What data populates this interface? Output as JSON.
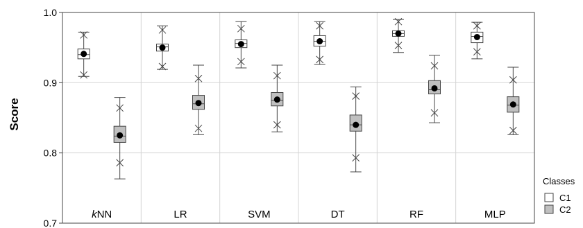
{
  "chart_data": {
    "type": "box",
    "ylabel": "Score",
    "ylim": [
      0.7,
      1.0
    ],
    "yticks": [
      0.7,
      0.8,
      0.9,
      1.0
    ],
    "ytick_labels": [
      "0.7",
      "0.8",
      "0.9",
      "1.0"
    ],
    "grid": true,
    "legend": {
      "title": "Classes",
      "placement": "right-bottom",
      "entries": [
        {
          "label": "C1",
          "color": "#ffffff"
        },
        {
          "label": "C2",
          "color": "#c0c0c0"
        }
      ]
    },
    "categories": [
      {
        "prefix": "k",
        "rest": "NN"
      },
      {
        "prefix": "",
        "rest": "LR"
      },
      {
        "prefix": "",
        "rest": "SVM"
      },
      {
        "prefix": "",
        "rest": "DT"
      },
      {
        "prefix": "",
        "rest": "RF"
      },
      {
        "prefix": "",
        "rest": "MLP"
      }
    ],
    "series": [
      {
        "name": "C1",
        "color": "#ffffff",
        "boxes": [
          {
            "min": 0.909,
            "p1": 0.911,
            "q1": 0.934,
            "median": 0.94,
            "mean": 0.941,
            "q3": 0.948,
            "p99": 0.968,
            "max": 0.972
          },
          {
            "min": 0.919,
            "p1": 0.923,
            "q1": 0.945,
            "median": 0.951,
            "mean": 0.95,
            "q3": 0.955,
            "p99": 0.975,
            "max": 0.981
          },
          {
            "min": 0.921,
            "p1": 0.93,
            "q1": 0.95,
            "median": 0.956,
            "mean": 0.955,
            "q3": 0.961,
            "p99": 0.977,
            "max": 0.987
          },
          {
            "min": 0.926,
            "p1": 0.933,
            "q1": 0.952,
            "median": 0.959,
            "mean": 0.959,
            "q3": 0.967,
            "p99": 0.981,
            "max": 0.987
          },
          {
            "min": 0.943,
            "p1": 0.953,
            "q1": 0.966,
            "median": 0.97,
            "mean": 0.97,
            "q3": 0.974,
            "p99": 0.987,
            "max": 0.99
          },
          {
            "min": 0.934,
            "p1": 0.944,
            "q1": 0.957,
            "median": 0.966,
            "mean": 0.965,
            "q3": 0.972,
            "p99": 0.981,
            "max": 0.986
          }
        ]
      },
      {
        "name": "C2",
        "color": "#c0c0c0",
        "boxes": [
          {
            "min": 0.763,
            "p1": 0.786,
            "q1": 0.815,
            "median": 0.824,
            "mean": 0.825,
            "q3": 0.838,
            "p99": 0.864,
            "max": 0.879
          },
          {
            "min": 0.826,
            "p1": 0.835,
            "q1": 0.862,
            "median": 0.87,
            "mean": 0.871,
            "q3": 0.882,
            "p99": 0.906,
            "max": 0.925
          },
          {
            "min": 0.83,
            "p1": 0.84,
            "q1": 0.867,
            "median": 0.875,
            "mean": 0.876,
            "q3": 0.886,
            "p99": 0.91,
            "max": 0.925
          },
          {
            "min": 0.773,
            "p1": 0.793,
            "q1": 0.831,
            "median": 0.84,
            "mean": 0.84,
            "q3": 0.854,
            "p99": 0.881,
            "max": 0.894
          },
          {
            "min": 0.843,
            "p1": 0.857,
            "q1": 0.884,
            "median": 0.89,
            "mean": 0.892,
            "q3": 0.903,
            "p99": 0.924,
            "max": 0.939
          },
          {
            "min": 0.826,
            "p1": 0.832,
            "q1": 0.858,
            "median": 0.868,
            "mean": 0.869,
            "q3": 0.88,
            "p99": 0.904,
            "max": 0.922
          }
        ]
      }
    ]
  }
}
